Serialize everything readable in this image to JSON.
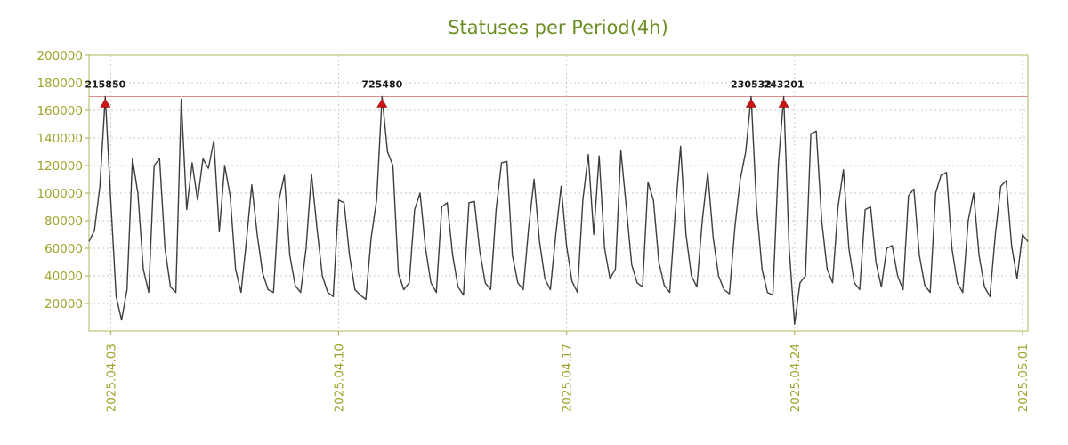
{
  "chart_data": {
    "type": "line",
    "title": "Statuses per Period(4h)",
    "xlabel": "",
    "ylabel": "",
    "ylim": [
      0,
      200000
    ],
    "y_ticks": [
      20000,
      40000,
      60000,
      80000,
      100000,
      120000,
      140000,
      160000,
      180000,
      200000
    ],
    "x_ticks": [
      {
        "index": 4,
        "label": "2025.04.03"
      },
      {
        "index": 46,
        "label": "2025.04.10"
      },
      {
        "index": 88,
        "label": "2025.04.17"
      },
      {
        "index": 130,
        "label": "2025.04.24"
      },
      {
        "index": 172,
        "label": "2025.05.01"
      }
    ],
    "period_hours": 4,
    "grid": true,
    "legend": false,
    "threshold": 170000,
    "annotations": [
      {
        "index": 3,
        "value": 215850,
        "label": "215850"
      },
      {
        "index": 54,
        "value": 725480,
        "label": "725480"
      },
      {
        "index": 122,
        "value": 230532,
        "label": "230532"
      },
      {
        "index": 128,
        "value": 243201,
        "label": "243201"
      }
    ],
    "values": [
      65000,
      73000,
      105000,
      170000,
      95000,
      25000,
      8000,
      30000,
      125000,
      100000,
      45000,
      28000,
      120000,
      125000,
      60000,
      32000,
      28000,
      168000,
      88000,
      122000,
      95000,
      125000,
      118000,
      138000,
      72000,
      120000,
      98000,
      45000,
      28000,
      65000,
      106000,
      70000,
      42000,
      30000,
      28000,
      95000,
      113000,
      55000,
      33000,
      28000,
      60000,
      114000,
      75000,
      40000,
      28000,
      25000,
      95000,
      93000,
      55000,
      30000,
      26000,
      23000,
      68000,
      95000,
      170000,
      130000,
      120000,
      42000,
      30000,
      35000,
      88000,
      100000,
      60000,
      35000,
      28000,
      90000,
      93000,
      55000,
      32000,
      26000,
      93000,
      94000,
      58000,
      35000,
      30000,
      88000,
      122000,
      123000,
      55000,
      35000,
      30000,
      75000,
      110000,
      65000,
      38000,
      30000,
      70000,
      105000,
      62000,
      36000,
      28000,
      95000,
      128000,
      70000,
      127000,
      60000,
      38000,
      45000,
      131000,
      90000,
      48000,
      35000,
      32000,
      108000,
      95000,
      50000,
      33000,
      28000,
      85000,
      134000,
      70000,
      40000,
      32000,
      80000,
      115000,
      68000,
      40000,
      30000,
      27000,
      75000,
      110000,
      130000,
      170000,
      90000,
      45000,
      28000,
      26000,
      120000,
      170000,
      60000,
      5000,
      35000,
      40000,
      143000,
      145000,
      80000,
      45000,
      35000,
      90000,
      117000,
      60000,
      35000,
      30000,
      88000,
      90000,
      50000,
      32000,
      60000,
      62000,
      40000,
      30000,
      98000,
      103000,
      55000,
      33000,
      28000,
      100000,
      113000,
      115000,
      60000,
      35000,
      28000,
      80000,
      100000,
      55000,
      32000,
      25000,
      70000,
      105000,
      109000,
      62000,
      38000,
      70000,
      65000
    ],
    "colors": {
      "title": "#6b8e23",
      "tick_labels": "#a0a42c",
      "border": "#b3b75f",
      "tick_marks": "#a8ab40",
      "grid": "#c9c9c9",
      "series_line": "#3d3d3d",
      "threshold_line": "#de8d8d",
      "marker_fill": "#cc1414",
      "marker_stroke": "#8a0c0c",
      "annotation_text": "#1a1a1a"
    }
  }
}
